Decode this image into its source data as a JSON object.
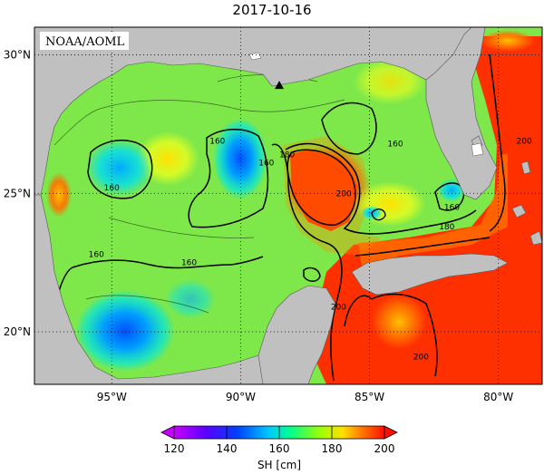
{
  "title": "2017-10-16",
  "credit": "NOAA/AOML",
  "lat_labels": [
    {
      "value": 30,
      "label": "30°N"
    },
    {
      "value": 25,
      "label": "25°N"
    },
    {
      "value": 20,
      "label": "20°N"
    }
  ],
  "lon_labels": [
    {
      "value": -95,
      "label": "95°W"
    },
    {
      "value": -90,
      "label": "90°W"
    },
    {
      "value": -85,
      "label": "85°W"
    },
    {
      "value": -80,
      "label": "80°W"
    }
  ],
  "colorbar": {
    "unit": "SH [cm]",
    "min": 120,
    "max": 200,
    "ticks": [
      120,
      140,
      160,
      180,
      200
    ],
    "has_triangle_ends": true
  },
  "contour_labels": [
    {
      "text": "160",
      "lon": -90.9,
      "lat": 26.8
    },
    {
      "text": "160",
      "lon": -89.0,
      "lat": 26.0
    },
    {
      "text": "180",
      "lon": -88.2,
      "lat": 26.3
    },
    {
      "text": "160",
      "lon": -95.0,
      "lat": 25.1
    },
    {
      "text": "160",
      "lon": -84.0,
      "lat": 26.7
    },
    {
      "text": "200",
      "lon": -86.0,
      "lat": 24.9
    },
    {
      "text": "160",
      "lon": -81.8,
      "lat": 24.4
    },
    {
      "text": "180",
      "lon": -82.0,
      "lat": 23.7
    },
    {
      "text": "200",
      "lon": -79.0,
      "lat": 26.8
    },
    {
      "text": "160",
      "lon": -95.6,
      "lat": 22.7
    },
    {
      "text": "160",
      "lon": -92.0,
      "lat": 22.4
    },
    {
      "text": "200",
      "lon": -86.2,
      "lat": 20.8
    },
    {
      "text": "200",
      "lon": -83.0,
      "lat": 19.0
    }
  ],
  "marker": {
    "type": "triangle",
    "lon": -88.5,
    "lat": 28.9
  },
  "colors": {
    "land": "#c0c0c0",
    "ocean_base": "#7ee84a",
    "gradient": [
      "#ff00ff",
      "#6a00ff",
      "#0060ff",
      "#00d8ff",
      "#00ff60",
      "#f0ff00",
      "#ff9000",
      "#ff2000"
    ]
  }
}
